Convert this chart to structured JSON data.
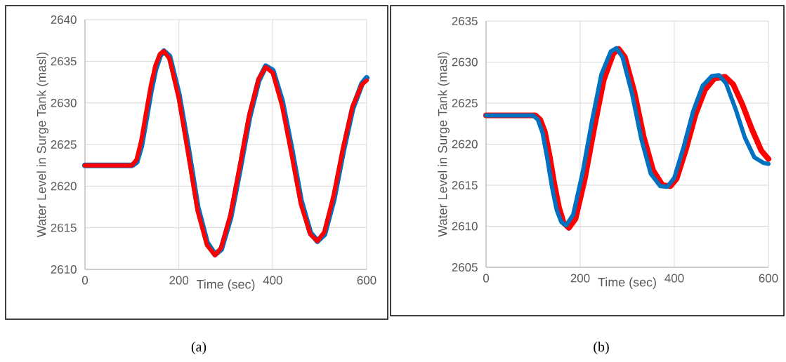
{
  "chart_data": [
    {
      "type": "line",
      "xlabel": "Time (sec)",
      "ylabel": "Water Level in Surge Tank (masl)",
      "xlim": [
        0,
        600
      ],
      "ylim": [
        2610,
        2640
      ],
      "xticks": [
        0,
        200,
        400,
        600
      ],
      "yticks": [
        2610,
        2615,
        2620,
        2625,
        2630,
        2635,
        2640
      ],
      "grid": true,
      "annotations": [
        "(a)"
      ],
      "series": [
        {
          "color": "#0070c0",
          "x": [
            0,
            100,
            110,
            120,
            130,
            140,
            150,
            160,
            168,
            180,
            200,
            220,
            240,
            260,
            277,
            290,
            310,
            330,
            350,
            370,
            385,
            400,
            420,
            440,
            460,
            480,
            495,
            510,
            530,
            550,
            570,
            590,
            600
          ],
          "values": [
            2622.5,
            2622.5,
            2622.9,
            2624.8,
            2628.0,
            2631.3,
            2634.0,
            2635.7,
            2636.2,
            2635.6,
            2631.0,
            2624.5,
            2617.5,
            2613.2,
            2611.8,
            2612.4,
            2616.2,
            2622.0,
            2628.2,
            2632.7,
            2634.4,
            2633.9,
            2630.2,
            2624.5,
            2618.3,
            2614.4,
            2613.4,
            2614.2,
            2618.4,
            2624.2,
            2629.3,
            2632.3,
            2633.0
          ]
        },
        {
          "color": "#ff0000",
          "x": [
            0,
            100,
            110,
            120,
            130,
            140,
            150,
            160,
            168,
            180,
            200,
            220,
            240,
            260,
            277,
            290,
            310,
            330,
            350,
            370,
            385,
            400,
            420,
            440,
            460,
            480,
            495,
            510,
            530,
            550,
            570,
            590,
            600
          ],
          "values": [
            2622.5,
            2622.5,
            2623.2,
            2625.5,
            2628.8,
            2632.0,
            2634.5,
            2635.9,
            2636.2,
            2635.3,
            2630.5,
            2623.8,
            2617.0,
            2612.9,
            2611.7,
            2612.6,
            2616.6,
            2622.5,
            2628.6,
            2632.9,
            2634.3,
            2633.6,
            2629.6,
            2623.8,
            2617.8,
            2614.2,
            2613.4,
            2614.5,
            2619.0,
            2624.7,
            2629.6,
            2632.2,
            2632.7
          ]
        }
      ]
    },
    {
      "type": "line",
      "xlabel": "Time (sec)",
      "ylabel": "Water Level in Surge Tank (masl)",
      "xlim": [
        0,
        600
      ],
      "ylim": [
        2605,
        2635
      ],
      "xticks": [
        0,
        200,
        400,
        600
      ],
      "yticks": [
        2605,
        2610,
        2615,
        2620,
        2625,
        2630,
        2635
      ],
      "grid": true,
      "annotations": [
        "(b)"
      ],
      "series": [
        {
          "color": "#ff0000",
          "x": [
            0,
            105,
            115,
            125,
            135,
            145,
            155,
            165,
            176,
            190,
            210,
            230,
            250,
            270,
            282,
            295,
            315,
            335,
            355,
            375,
            392,
            405,
            425,
            445,
            465,
            485,
            508,
            525,
            545,
            565,
            585,
            600
          ],
          "values": [
            2623.5,
            2623.5,
            2623.0,
            2621.5,
            2618.6,
            2615.2,
            2612.3,
            2610.4,
            2609.8,
            2610.9,
            2615.8,
            2622.0,
            2627.8,
            2631.0,
            2631.6,
            2630.6,
            2626.4,
            2620.9,
            2616.8,
            2615.0,
            2614.9,
            2615.8,
            2619.4,
            2623.6,
            2626.6,
            2628.0,
            2628.2,
            2627.3,
            2624.8,
            2621.8,
            2619.2,
            2618.2
          ]
        },
        {
          "color": "#0070c0",
          "x": [
            0,
            100,
            110,
            120,
            130,
            140,
            150,
            160,
            170,
            185,
            205,
            225,
            245,
            265,
            277,
            290,
            310,
            330,
            350,
            370,
            385,
            400,
            420,
            440,
            460,
            480,
            495,
            510,
            530,
            550,
            570,
            590,
            600
          ],
          "values": [
            2623.5,
            2623.5,
            2623.0,
            2621.4,
            2618.3,
            2614.8,
            2612.0,
            2610.5,
            2610.1,
            2611.4,
            2616.5,
            2622.8,
            2628.5,
            2631.3,
            2631.7,
            2630.6,
            2626.2,
            2620.6,
            2616.4,
            2614.9,
            2614.8,
            2615.9,
            2619.7,
            2624.0,
            2627.1,
            2628.3,
            2628.4,
            2627.4,
            2624.3,
            2620.8,
            2618.4,
            2617.7,
            2617.6
          ]
        }
      ]
    }
  ]
}
